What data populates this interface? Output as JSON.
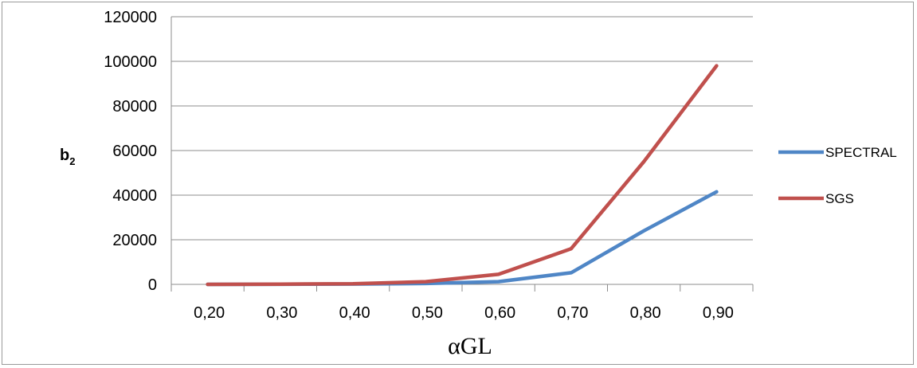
{
  "chart_data": {
    "type": "line",
    "x": [
      "0,20",
      "0,30",
      "0,40",
      "0,50",
      "0,60",
      "0,70",
      "0,80",
      "0,90"
    ],
    "series": [
      {
        "name": "SPECTRAL",
        "color": "#4f86c6",
        "values": [
          0,
          50,
          150,
          400,
          1200,
          5200,
          24000,
          41500
        ]
      },
      {
        "name": "SGS",
        "color": "#c0504d",
        "values": [
          0,
          100,
          300,
          1200,
          4500,
          16000,
          55000,
          98000
        ]
      }
    ],
    "xlabel": "αGL",
    "ylabel": "b",
    "ylabel_sub": "2",
    "ylim": [
      0,
      120000
    ],
    "yticks": [
      "0",
      "20000",
      "40000",
      "60000",
      "80000",
      "100000",
      "120000"
    ],
    "legend_position": "right",
    "grid": true
  }
}
